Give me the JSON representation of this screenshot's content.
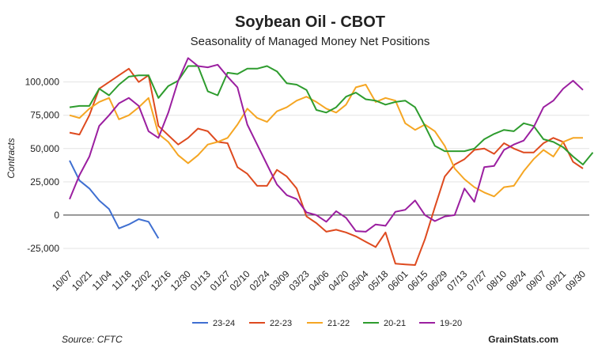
{
  "chart_data": {
    "type": "line",
    "title": "Soybean Oil - CBOT",
    "subtitle": "Seasonality of Managed Money Net Positions",
    "xlabel": "",
    "ylabel": "Contracts",
    "ylim": [
      -37500,
      120000
    ],
    "yticks": [
      {
        "value": 100000,
        "label": "100,000"
      },
      {
        "value": 75000,
        "label": "75,000"
      },
      {
        "value": 50000,
        "label": "50,000"
      },
      {
        "value": 25000,
        "label": "25,000"
      },
      {
        "value": 0,
        "label": "0"
      },
      {
        "value": -25000,
        "label": "-25,000"
      }
    ],
    "xticks": [
      "10/07",
      "10/21",
      "11/04",
      "11/18",
      "12/02",
      "12/16",
      "12/30",
      "01/13",
      "01/27",
      "02/10",
      "02/24",
      "03/09",
      "03/23",
      "04/06",
      "04/20",
      "05/04",
      "05/18",
      "06/01",
      "06/15",
      "06/29",
      "07/13",
      "07/27",
      "08/10",
      "08/24",
      "09/07",
      "09/21",
      "09/30"
    ],
    "xtick_index": [
      0,
      2,
      4,
      6,
      8,
      10,
      12,
      14,
      16,
      18,
      20,
      22,
      24,
      26,
      28,
      30,
      32,
      34,
      36,
      38,
      40,
      42,
      44,
      46,
      48,
      50,
      52
    ],
    "grid": true,
    "legend_position": "bottom",
    "series": [
      {
        "name": "23-24",
        "color": "#3f6fd1",
        "values": [
          41000,
          26000,
          20000,
          11000,
          4500,
          -10000,
          -7000,
          -3000,
          -5000,
          -17500
        ]
      },
      {
        "name": "22-23",
        "color": "#de4a1f",
        "values": [
          62000,
          60500,
          75000,
          95000,
          100000,
          105000,
          110000,
          100000,
          105000,
          67000,
          60000,
          53000,
          58000,
          65000,
          63000,
          55000,
          54000,
          36000,
          31000,
          22000,
          22000,
          34000,
          29000,
          20000,
          -1000,
          -6000,
          -12500,
          -11000,
          -13000,
          -16000,
          -20000,
          -24000,
          -13000,
          -36500,
          -37000,
          -37500,
          -18000,
          6000,
          29000,
          38000,
          42000,
          49000,
          50000,
          46000,
          54000,
          50000,
          47000,
          47000,
          54000,
          58000,
          55000,
          40000,
          35000
        ]
      },
      {
        "name": "21-22",
        "color": "#f5a623",
        "values": [
          75000,
          73000,
          80000,
          85000,
          88000,
          72000,
          75000,
          81000,
          88000,
          61000,
          55000,
          45000,
          39000,
          45000,
          53000,
          55000,
          58000,
          68000,
          80000,
          73000,
          70000,
          78000,
          81000,
          86000,
          89000,
          85000,
          80000,
          77000,
          83000,
          96000,
          98000,
          85000,
          88000,
          86000,
          69000,
          64000,
          68000,
          63000,
          52000,
          35000,
          27000,
          21000,
          17000,
          14000,
          21000,
          22000,
          33000,
          42000,
          49000,
          44000,
          55000,
          58000,
          58000
        ]
      },
      {
        "name": "20-21",
        "color": "#2e9c2e",
        "values": [
          81000,
          82000,
          82000,
          95000,
          90000,
          98000,
          104000,
          105000,
          105000,
          88000,
          97000,
          101000,
          112000,
          112000,
          93000,
          90000,
          107000,
          106000,
          110000,
          110000,
          112000,
          108000,
          99000,
          98000,
          94000,
          79000,
          77000,
          81000,
          89000,
          92000,
          87000,
          86000,
          83000,
          85000,
          86000,
          81000,
          67000,
          52000,
          48000,
          48000,
          48000,
          50000,
          57000,
          61000,
          64000,
          63000,
          69000,
          67000,
          57000,
          55000,
          51000,
          44000,
          38000,
          47000
        ]
      },
      {
        "name": "19-20",
        "color": "#9b1fa0",
        "values": [
          12000,
          30000,
          44000,
          67000,
          75000,
          84000,
          88000,
          82000,
          63000,
          58000,
          77000,
          101000,
          118000,
          112000,
          111000,
          113000,
          104000,
          96000,
          68000,
          53000,
          38000,
          23000,
          15000,
          12000,
          2000,
          0,
          -5000,
          3000,
          -2000,
          -12000,
          -12500,
          -7000,
          -8000,
          2500,
          4000,
          11000,
          0,
          -4500,
          -1000,
          0,
          20000,
          10000,
          36000,
          37000,
          49000,
          53000,
          56000,
          66000,
          81000,
          86000,
          95000,
          101000,
          94000
        ]
      }
    ]
  },
  "source_text": "Source: CFTC",
  "brand_text": "GrainStats.com"
}
